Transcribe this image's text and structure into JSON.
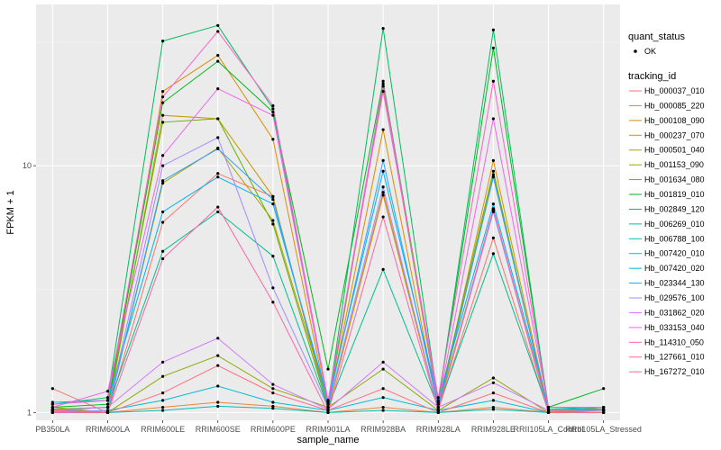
{
  "chart_data": {
    "type": "line",
    "xlabel": "sample_name",
    "ylabel": "FPKM + 1",
    "y_scale": "log10",
    "ylim": [
      0.93,
      45
    ],
    "y_ticks": [
      {
        "value": 1,
        "label": "1"
      },
      {
        "value": 10,
        "label": "10"
      }
    ],
    "grid": true,
    "legend_position": "right",
    "categories": [
      "PB350LA",
      "RRIM600LA",
      "RRIM600LE",
      "RRIM600SE",
      "RRIM600PE",
      "RRIM901LA",
      "RRIM928BA",
      "RRIM928LA",
      "RRIM928LE",
      "RRII105LA_Control",
      "RRII105LA_Stressed"
    ],
    "shape_legend": {
      "title": "quant_status",
      "items": [
        {
          "label": "OK",
          "shape": "point"
        }
      ]
    },
    "color_legend_title": "tracking_id",
    "series": [
      {
        "name": "Hb_000037_010",
        "color": "#F8766D",
        "values": [
          1.25,
          1.0,
          5.9,
          9.3,
          7.5,
          1.02,
          7.8,
          1.02,
          5.1,
          1.0,
          1.05
        ]
      },
      {
        "name": "Hb_000085_220",
        "color": "#EC8239",
        "values": [
          1.01,
          1.0,
          1.05,
          1.1,
          1.06,
          1.0,
          1.05,
          1.0,
          1.05,
          1.0,
          1.0
        ]
      },
      {
        "name": "Hb_000108_090",
        "color": "#DB8E00",
        "values": [
          1.03,
          1.0,
          20,
          28,
          12.8,
          1.05,
          14,
          1.03,
          10.5,
          1.02,
          1.05
        ]
      },
      {
        "name": "Hb_000237_070",
        "color": "#C79800",
        "values": [
          1.05,
          1.0,
          16,
          15.5,
          7.5,
          1.03,
          7.6,
          1.02,
          9.2,
          1.01,
          1.02
        ]
      },
      {
        "name": "Hb_000501_040",
        "color": "#AEA200",
        "values": [
          1.02,
          1.0,
          8.5,
          11.8,
          6.0,
          1.1,
          21,
          1.05,
          6.6,
          1.02,
          1.03
        ]
      },
      {
        "name": "Hb_001153_090",
        "color": "#8FAA00",
        "values": [
          1.0,
          1.0,
          1.4,
          1.7,
          1.25,
          1.05,
          1.5,
          1.02,
          1.38,
          1.0,
          1.0
        ]
      },
      {
        "name": "Hb_001634_080",
        "color": "#64B200",
        "values": [
          1.03,
          1.05,
          15,
          15.5,
          5.8,
          1.05,
          21,
          1.08,
          9.5,
          1.0,
          1.0
        ]
      },
      {
        "name": "Hb_001819_010",
        "color": "#00B81B",
        "values": [
          1.05,
          1.08,
          18,
          26.5,
          16.5,
          1.5,
          22,
          1.1,
          30,
          1.05,
          1.25
        ]
      },
      {
        "name": "Hb_002849_120",
        "color": "#00BD5C",
        "values": [
          1.08,
          1.15,
          32,
          37,
          17,
          1.08,
          36,
          1.1,
          35.5,
          1.03,
          1.03
        ]
      },
      {
        "name": "Hb_006269_010",
        "color": "#00C08E",
        "values": [
          1.02,
          1.05,
          4.5,
          6.5,
          4.3,
          1.05,
          3.8,
          1.05,
          4.4,
          1.02,
          1.02
        ]
      },
      {
        "name": "Hb_006788_100",
        "color": "#00C1B2",
        "values": [
          1.0,
          1.0,
          1.02,
          1.06,
          1.04,
          1.0,
          1.02,
          1.0,
          1.03,
          1.0,
          1.0
        ]
      },
      {
        "name": "Hb_007420_010",
        "color": "#00BCD6",
        "values": [
          1.0,
          1.02,
          1.12,
          1.28,
          1.1,
          1.02,
          1.15,
          1.02,
          1.12,
          1.0,
          1.02
        ]
      },
      {
        "name": "Hb_007420_020",
        "color": "#00B3F2",
        "values": [
          1.1,
          1.12,
          6.5,
          9.0,
          7.0,
          1.12,
          9.5,
          1.12,
          7.0,
          1.05,
          1.03
        ]
      },
      {
        "name": "Hb_023344_130",
        "color": "#29A3FF",
        "values": [
          1.03,
          1.0,
          8.7,
          11.7,
          7.3,
          1.08,
          10.5,
          1.05,
          9.0,
          1.02,
          1.02
        ]
      },
      {
        "name": "Hb_029576_100",
        "color": "#9C8DFF",
        "values": [
          1.0,
          1.02,
          10,
          13,
          3.2,
          1.05,
          8.2,
          1.02,
          6.5,
          1.0,
          1.0
        ]
      },
      {
        "name": "Hb_031862_020",
        "color": "#D277FF",
        "values": [
          1.02,
          1.05,
          1.6,
          2.0,
          1.3,
          1.03,
          1.6,
          1.05,
          1.32,
          1.02,
          1.02
        ]
      },
      {
        "name": "Hb_033153_040",
        "color": "#F066EA",
        "values": [
          1.05,
          1.22,
          11,
          20.5,
          16,
          1.1,
          21.5,
          1.08,
          15.5,
          1.05,
          1.05
        ]
      },
      {
        "name": "Hb_114310_050",
        "color": "#FC61C9",
        "values": [
          1.08,
          1.12,
          19,
          35,
          17.5,
          1.12,
          20,
          1.15,
          22,
          1.05,
          1.05
        ]
      },
      {
        "name": "Hb_127661_010",
        "color": "#FF65A4",
        "values": [
          1.0,
          1.0,
          4.2,
          6.8,
          2.8,
          1.0,
          6.2,
          1.02,
          6.7,
          1.0,
          1.0
        ]
      },
      {
        "name": "Hb_167272_010",
        "color": "#FF6C7F",
        "values": [
          1.02,
          1.0,
          1.2,
          1.55,
          1.2,
          1.02,
          1.25,
          1.0,
          1.2,
          1.0,
          1.0
        ]
      }
    ]
  }
}
